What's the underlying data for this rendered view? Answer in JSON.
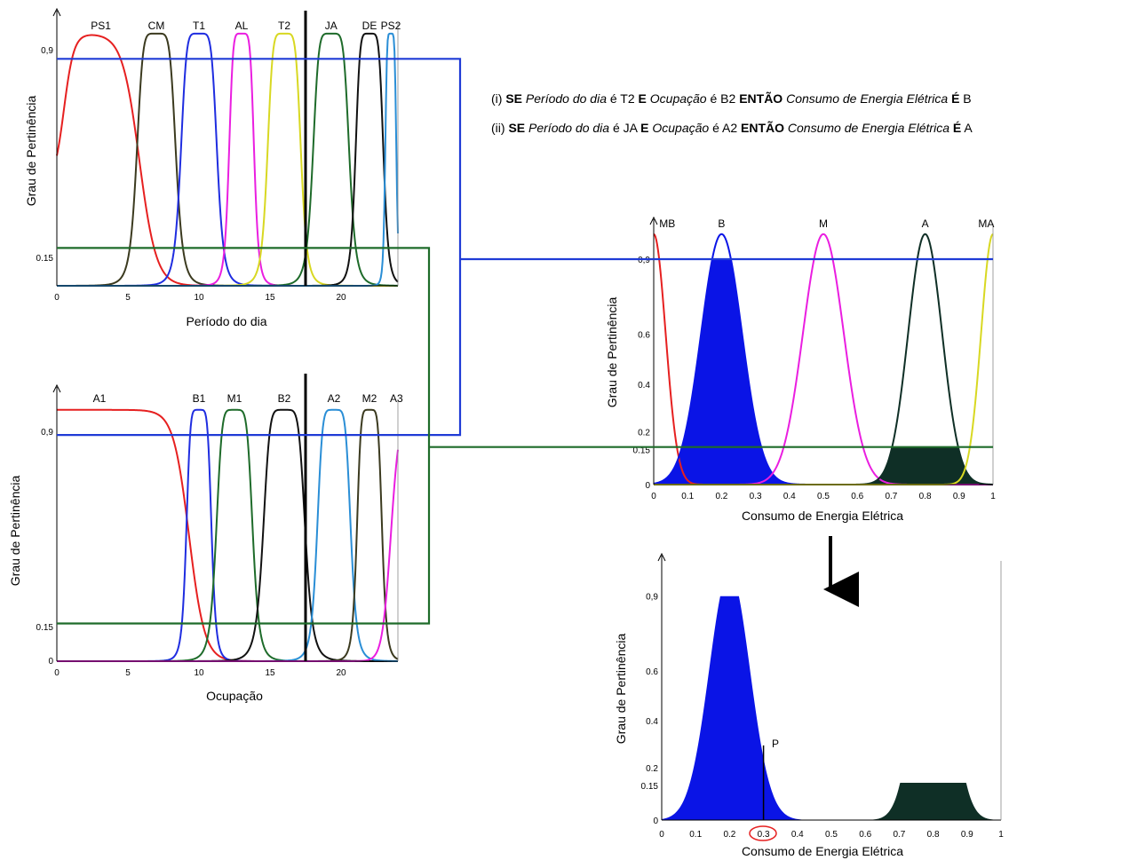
{
  "rules": [
    {
      "id": "(i)",
      "parts": [
        {
          "t": "(i) ",
          "s": "n"
        },
        {
          "t": "SE",
          "s": "b"
        },
        {
          "t": " Período do dia",
          "s": "i"
        },
        {
          "t": " é T2 ",
          "s": "n"
        },
        {
          "t": "E",
          "s": "b"
        },
        {
          "t": " Ocupação",
          "s": "i"
        },
        {
          "t": " é B2 ",
          "s": "n"
        },
        {
          "t": "ENTÃO",
          "s": "b"
        },
        {
          "t": " Consumo de Energia Elétrica ",
          "s": "i"
        },
        {
          "t": "É",
          "s": "b"
        },
        {
          "t": " B",
          "s": "n"
        }
      ]
    },
    {
      "id": "(ii)",
      "parts": [
        {
          "t": "(ii) ",
          "s": "n"
        },
        {
          "t": "SE",
          "s": "b"
        },
        {
          "t": " Período do dia",
          "s": "i"
        },
        {
          "t": " é JA ",
          "s": "n"
        },
        {
          "t": "E",
          "s": "b"
        },
        {
          "t": " Ocupação",
          "s": "i"
        },
        {
          "t": " é A2 ",
          "s": "n"
        },
        {
          "t": "ENTÃO",
          "s": "b"
        },
        {
          "t": " Consumo de Energia Elétrica ",
          "s": "i"
        },
        {
          "t": "É",
          "s": "b"
        },
        {
          "t": " A",
          "s": "n"
        }
      ]
    }
  ],
  "colors": {
    "blue_line": "#1f3bd6",
    "green_line": "#1e6b2a",
    "fill_blue": "#0a14e6",
    "fill_dark": "#0f2f26"
  },
  "panels": {
    "periodo": {
      "xlabel": "Período do dia",
      "ylabel": "Grau de Pertinência",
      "xticks": [
        "0",
        "5",
        "10",
        "15",
        "20"
      ],
      "yticks": [
        "0,9",
        "0.15"
      ],
      "labels": [
        "PS1",
        "CM",
        "T1",
        "AL",
        "T2",
        "JA",
        "DE",
        "PS2"
      ],
      "marker_x": 17.5
    },
    "ocupacao": {
      "xlabel": "Ocupação",
      "ylabel": "Grau de Pertinência",
      "xticks": [
        "0",
        "5",
        "10",
        "15",
        "20"
      ],
      "yticks": [
        "0,9",
        "0.15",
        "0"
      ],
      "labels": [
        "A1",
        "B1",
        "M1",
        "B2",
        "A2",
        "M2",
        "A3"
      ],
      "marker_x": 17.5
    },
    "consumo": {
      "xlabel": "Consumo de Energia Elétrica",
      "ylabel": "Grau de Pertinência",
      "xticks": [
        "0",
        "0.1",
        "0.2",
        "0.3",
        "0.4",
        "0.5",
        "0.6",
        "0.7",
        "0.8",
        "0.9",
        "1"
      ],
      "yticks": [
        "0,9",
        "0.6",
        "0.4",
        "0.2",
        "0.15",
        "0"
      ],
      "labels": [
        "MB",
        "B",
        "M",
        "A",
        "MA"
      ]
    },
    "resultado": {
      "xlabel": "Consumo de Energia Elétrica",
      "ylabel": "Grau de Pertinência",
      "xticks": [
        "0",
        "0.1",
        "0.2",
        "0.3",
        "0.4",
        "0.5",
        "0.6",
        "0.7",
        "0.8",
        "0.9",
        "1"
      ],
      "yticks": [
        "0,9",
        "0.6",
        "0.4",
        "0.2",
        "0.15",
        "0"
      ],
      "point_label": "P",
      "crisp_value": 0.3
    }
  },
  "chart_data": [
    {
      "type": "line",
      "x_domain": [
        0,
        24
      ],
      "ylim": [
        0,
        1
      ],
      "cut_levels": [
        0.9,
        0.15
      ],
      "series": [
        {
          "name": "PS1",
          "color": "#e62020",
          "shape": "zmf",
          "a": 5.8,
          "b": 4.5,
          "w": 0.6,
          "rise_start": 0.5
        },
        {
          "name": "CM",
          "color": "#3b3a1f",
          "shape": "gbell",
          "c": 7,
          "a": 1.4,
          "b": 3
        },
        {
          "name": "T1",
          "color": "#1f2de0",
          "shape": "gbell",
          "c": 10,
          "a": 1.3,
          "b": 3
        },
        {
          "name": "AL",
          "color": "#ea1ee0",
          "shape": "gbell",
          "c": 13,
          "a": 0.9,
          "b": 3
        },
        {
          "name": "T2",
          "color": "#d8d822",
          "shape": "gbell",
          "c": 16,
          "a": 1.2,
          "b": 3
        },
        {
          "name": "JA",
          "color": "#1e6b2a",
          "shape": "gbell",
          "c": 19.3,
          "a": 1.3,
          "b": 3
        },
        {
          "name": "DE",
          "color": "#111111",
          "shape": "gbell",
          "c": 22,
          "a": 1.0,
          "b": 3
        },
        {
          "name": "PS2",
          "color": "#2a8ed6",
          "shape": "gbell",
          "c": 23.5,
          "a": 0.4,
          "b": 3
        }
      ]
    },
    {
      "type": "line",
      "x_domain": [
        0,
        24
      ],
      "ylim": [
        0,
        1
      ],
      "cut_levels": [
        0.9,
        0.15
      ],
      "series": [
        {
          "name": "A1",
          "color": "#e62020",
          "shape": "zmf",
          "a": 9.3,
          "b": 8,
          "w": 0.55
        },
        {
          "name": "B1",
          "color": "#1f2de0",
          "shape": "gbell",
          "c": 10,
          "a": 0.9,
          "b": 3
        },
        {
          "name": "M1",
          "color": "#1e6b2a",
          "shape": "gbell",
          "c": 12.5,
          "a": 1.3,
          "b": 3
        },
        {
          "name": "B2",
          "color": "#111111",
          "shape": "gbell",
          "c": 16,
          "a": 1.5,
          "b": 3
        },
        {
          "name": "A2",
          "color": "#2a8ed6",
          "shape": "gbell",
          "c": 19.5,
          "a": 1.2,
          "b": 3
        },
        {
          "name": "M2",
          "color": "#3b3a1f",
          "shape": "gbell",
          "c": 22,
          "a": 0.9,
          "b": 3
        },
        {
          "name": "A3",
          "color": "#ea1ee0",
          "shape": "smf",
          "a": 23.5,
          "w": 0.3
        }
      ]
    },
    {
      "type": "area",
      "x_domain": [
        0,
        1
      ],
      "ylim": [
        0,
        1
      ],
      "cut_levels": [
        0.9,
        0.15
      ],
      "series": [
        {
          "name": "MB",
          "color": "#e62020",
          "shape": "zgauss",
          "c": 0,
          "s": 0.035
        },
        {
          "name": "B",
          "color": "#0a14e6",
          "shape": "gauss",
          "c": 0.2,
          "s": 0.06,
          "clip": 0.9
        },
        {
          "name": "M",
          "color": "#ea1ee0",
          "shape": "gauss",
          "c": 0.5,
          "s": 0.06
        },
        {
          "name": "A",
          "color": "#0f2f26",
          "shape": "gauss",
          "c": 0.8,
          "s": 0.05,
          "clip": 0.15
        },
        {
          "name": "MA",
          "color": "#d8d822",
          "shape": "sgauss",
          "c": 1.0,
          "s": 0.035
        }
      ]
    },
    {
      "type": "area",
      "x_domain": [
        0,
        1
      ],
      "ylim": [
        0,
        1
      ],
      "series": [
        {
          "name": "B",
          "color": "#0a14e6",
          "shape": "gauss",
          "c": 0.2,
          "s": 0.06,
          "clip": 0.9
        },
        {
          "name": "A",
          "color": "#0f2f26",
          "shape": "gauss",
          "c": 0.8,
          "s": 0.05,
          "clip": 0.15
        }
      ],
      "annotations": [
        {
          "x": 0.3,
          "y": 0.3,
          "text": "P"
        }
      ]
    }
  ]
}
